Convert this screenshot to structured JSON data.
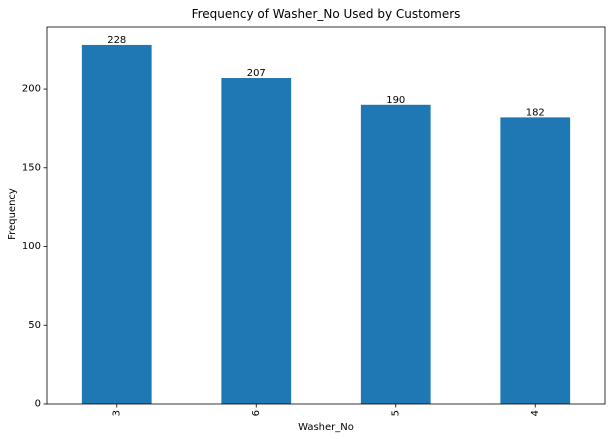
{
  "chart_data": {
    "type": "bar",
    "title": "Frequency of Washer_No Used by Customers",
    "xlabel": "Washer_No",
    "ylabel": "Frequency",
    "categories": [
      "3",
      "6",
      "5",
      "4"
    ],
    "values": [
      228,
      207,
      190,
      182
    ],
    "data_labels": [
      "228",
      "207",
      "190",
      "182"
    ],
    "ylim": [
      0,
      239.4
    ],
    "yticks": [
      0,
      50,
      100,
      150,
      200
    ],
    "bar_color": "#1f77b4",
    "grid": false,
    "legend": "none",
    "x_tick_rotation": "vertical"
  }
}
